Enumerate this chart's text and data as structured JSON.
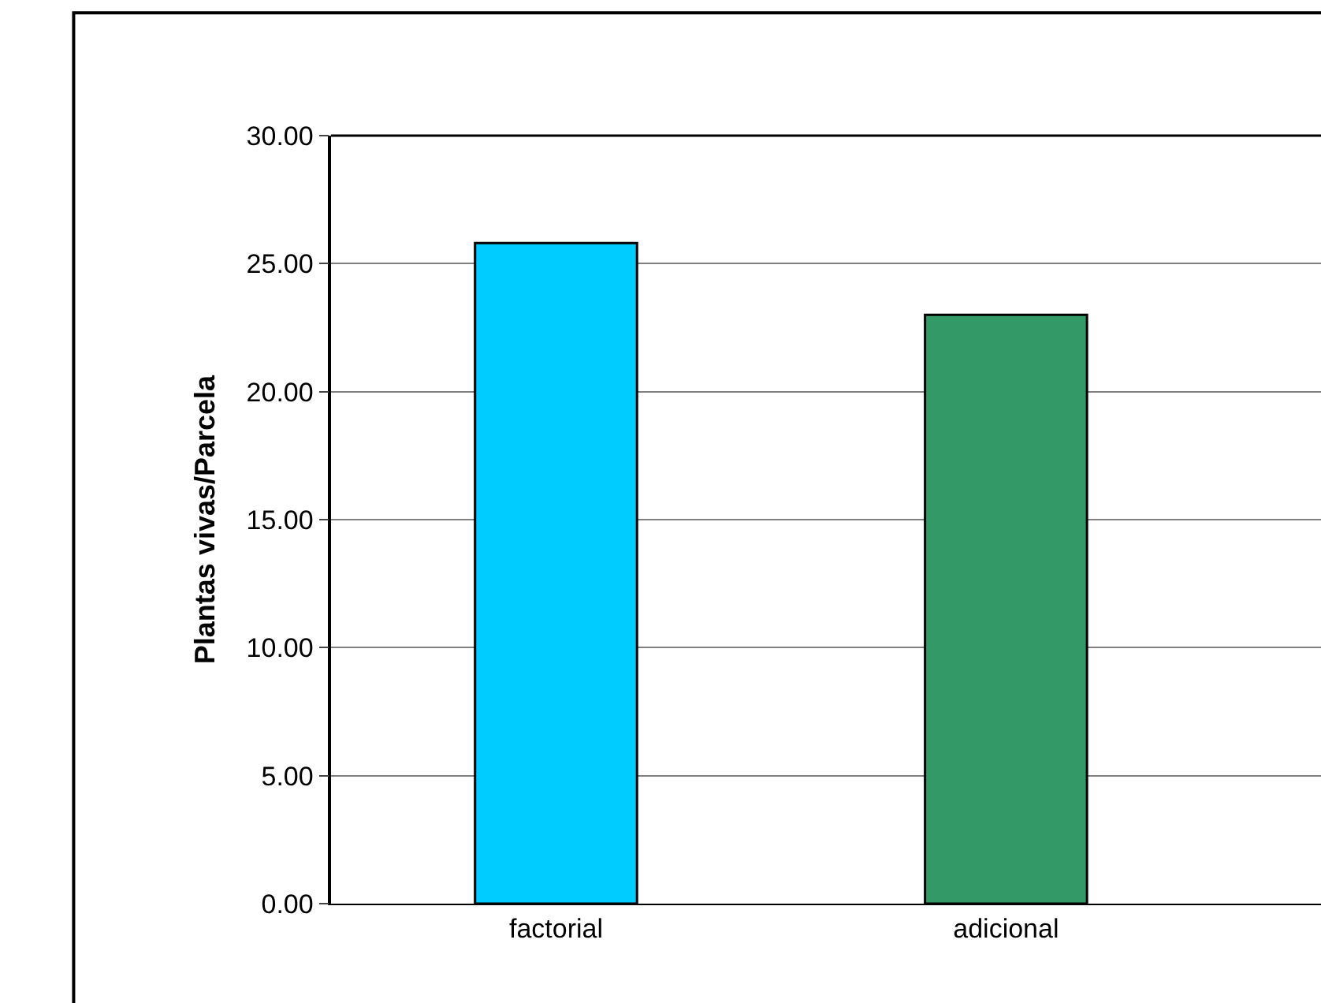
{
  "chart_data": {
    "type": "bar",
    "ylabel": "Plantas vivas/Parcela",
    "categories": [
      "factorial",
      "adicional"
    ],
    "values": [
      25.8,
      23.0
    ],
    "colors": [
      "#00ccff",
      "#339966"
    ],
    "ylim": [
      0,
      30
    ],
    "yticks": [
      {
        "value": 0,
        "label": "0.00"
      },
      {
        "value": 5,
        "label": "5.00"
      },
      {
        "value": 10,
        "label": "10.00"
      },
      {
        "value": 15,
        "label": "15.00"
      },
      {
        "value": 20,
        "label": "20.00"
      },
      {
        "value": 25,
        "label": "25.00"
      },
      {
        "value": 30,
        "label": "30.00"
      }
    ],
    "grid": "y"
  }
}
